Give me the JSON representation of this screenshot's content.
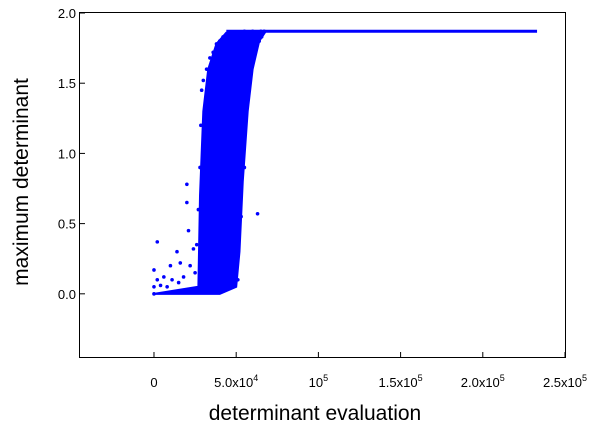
{
  "chart_data": {
    "type": "scatter",
    "title": "",
    "xlabel": "determinant evaluation",
    "ylabel": "maximum determinant",
    "xlim": [
      -45000,
      250000
    ],
    "ylim": [
      -0.45,
      2.0
    ],
    "grid": false,
    "legend": "none",
    "marker_color": "#0000ff",
    "x_ticks": [
      {
        "value": 0,
        "mantissa": "0",
        "exp": ""
      },
      {
        "value": 50000,
        "mantissa": "5.0x10",
        "exp": "4"
      },
      {
        "value": 100000,
        "mantissa": "10",
        "exp": "5"
      },
      {
        "value": 150000,
        "mantissa": "1.5x10",
        "exp": "5"
      },
      {
        "value": 200000,
        "mantissa": "2.0x10",
        "exp": "5"
      },
      {
        "value": 250000,
        "mantissa": "2.5x10",
        "exp": "5"
      }
    ],
    "y_ticks": [
      {
        "value": 0.0,
        "label": "0.0"
      },
      {
        "value": 0.5,
        "label": "0.5"
      },
      {
        "value": 1.0,
        "label": "1.0"
      },
      {
        "value": 1.5,
        "label": "1.5"
      },
      {
        "value": 2.0,
        "label": "2.0"
      }
    ],
    "series": [
      {
        "plateau": {
          "x_start": 44000,
          "x_end": 233000,
          "y": 1.87
        },
        "spread_lower_edge": [
          [
            0,
            0.0
          ],
          [
            27000,
            0.05
          ],
          [
            28000,
            0.7
          ],
          [
            30000,
            1.3
          ],
          [
            33000,
            1.6
          ],
          [
            38000,
            1.78
          ],
          [
            44000,
            1.86
          ],
          [
            50000,
            1.87
          ]
        ],
        "spread_upper_edge": [
          [
            0,
            0.0
          ],
          [
            40000,
            0.0
          ],
          [
            50000,
            0.05
          ],
          [
            52000,
            0.3
          ],
          [
            54000,
            0.8
          ],
          [
            57000,
            1.3
          ],
          [
            60000,
            1.6
          ],
          [
            64000,
            1.8
          ],
          [
            68000,
            1.87
          ]
        ],
        "points": [
          [
            0,
            0.0
          ],
          [
            0,
            0.05
          ],
          [
            0,
            0.17
          ],
          [
            2000,
            0.1
          ],
          [
            2000,
            0.37
          ],
          [
            4000,
            0.06
          ],
          [
            6000,
            0.12
          ],
          [
            8000,
            0.05
          ],
          [
            10000,
            0.2
          ],
          [
            11000,
            0.1
          ],
          [
            14000,
            0.3
          ],
          [
            15000,
            0.08
          ],
          [
            16000,
            0.22
          ],
          [
            18000,
            0.12
          ],
          [
            20000,
            0.65
          ],
          [
            20000,
            0.78
          ],
          [
            21000,
            0.45
          ],
          [
            22000,
            0.2
          ],
          [
            24000,
            0.32
          ],
          [
            25000,
            0.15
          ],
          [
            26000,
            0.35
          ],
          [
            27000,
            0.6
          ],
          [
            28000,
            0.9
          ],
          [
            28500,
            1.2
          ],
          [
            29000,
            1.45
          ],
          [
            30000,
            1.52
          ],
          [
            32000,
            1.6
          ],
          [
            34000,
            1.68
          ],
          [
            36000,
            1.72
          ],
          [
            38000,
            1.78
          ],
          [
            40000,
            1.8
          ],
          [
            42000,
            1.83
          ],
          [
            44000,
            1.85
          ],
          [
            46000,
            1.86
          ],
          [
            50000,
            1.86
          ],
          [
            55000,
            1.87
          ],
          [
            60000,
            1.87
          ],
          [
            65000,
            1.87
          ],
          [
            67000,
            1.87
          ],
          [
            46000,
            0.2
          ],
          [
            48000,
            0.5
          ],
          [
            50000,
            0.9
          ],
          [
            52000,
            1.2
          ],
          [
            54000,
            1.45
          ],
          [
            56000,
            1.55
          ],
          [
            58000,
            1.62
          ],
          [
            60000,
            1.7
          ],
          [
            62000,
            1.75
          ],
          [
            64000,
            1.8
          ],
          [
            65500,
            1.83
          ],
          [
            63000,
            0.57
          ],
          [
            55000,
            0.9
          ],
          [
            53000,
            0.55
          ],
          [
            40000,
            0.8
          ],
          [
            35000,
            0.4
          ],
          [
            30000,
            0.1
          ],
          [
            42000,
            0.15
          ],
          [
            45000,
            0.3
          ],
          [
            51000,
            0.1
          ]
        ]
      }
    ]
  }
}
